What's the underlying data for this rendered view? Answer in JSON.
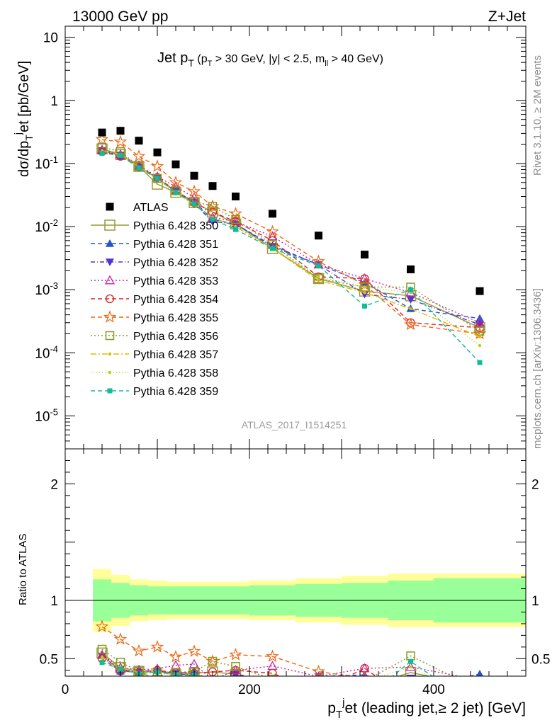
{
  "header": {
    "left": "13000 GeV pp",
    "right": "Z+Jet"
  },
  "side_labels": {
    "rivet": "Rivet 3.1.10, ≥ 2M events",
    "mcplots": "mcplots.cern.ch [arXiv:1306.3436]"
  },
  "analysis_label": "ATLAS_2017_I1514251",
  "title": {
    "main": "Jet p",
    "main_sub": "T",
    "cut_1": "(p",
    "cut_1_sub": "T",
    "cut_2": " > 30 GeV, |y| < 2.5, m",
    "cut_2_sub": "ll",
    "cut_3": " > 40 GeV)"
  },
  "axes": {
    "y_main": "dσ/dp",
    "y_main_sub": "T",
    "y_main_sup": "j",
    "y_main_rest": "et [pb/GeV]",
    "y_ratio": "Ratio to ATLAS",
    "x": "p",
    "x_sub": "T",
    "x_sup": "j",
    "x_rest": "et (leading jet,≥ 2 jet) [GeV]"
  },
  "chart_data": {
    "type": "scatter",
    "x_range": [
      0,
      500
    ],
    "y_main_range": [
      3e-06,
      15
    ],
    "y_main_scale": "log",
    "y_main_ticks": [
      "10",
      "1",
      "10^-1",
      "10^-2",
      "10^-3",
      "10^-4",
      "10^-5"
    ],
    "y_ratio_range": [
      0.35,
      2.3
    ],
    "y_ratio_ticks": [
      "2",
      "1",
      "0.5"
    ],
    "x_ticks": [
      "0",
      "200",
      "400"
    ],
    "legend_position": "middle-left",
    "x": [
      40,
      60,
      80,
      100,
      120,
      140,
      160,
      185,
      225,
      275,
      325,
      375,
      450
    ],
    "bins": [
      [
        30,
        50
      ],
      [
        50,
        70
      ],
      [
        70,
        90
      ],
      [
        90,
        110
      ],
      [
        110,
        130
      ],
      [
        130,
        150
      ],
      [
        150,
        170
      ],
      [
        170,
        200
      ],
      [
        200,
        250
      ],
      [
        250,
        300
      ],
      [
        300,
        350
      ],
      [
        350,
        400
      ],
      [
        400,
        500
      ]
    ],
    "atlas": {
      "name": "ATLAS",
      "values": [
        0.31,
        0.33,
        0.23,
        0.15,
        0.097,
        0.064,
        0.044,
        0.03,
        0.016,
        0.0072,
        0.0036,
        0.0021,
        0.00095
      ]
    },
    "ratio_band_inner": [
      0.18,
      0.15,
      0.13,
      0.12,
      0.12,
      0.12,
      0.12,
      0.12,
      0.13,
      0.14,
      0.15,
      0.17,
      0.19
    ],
    "ratio_band_outer": [
      0.27,
      0.22,
      0.18,
      0.17,
      0.16,
      0.16,
      0.16,
      0.16,
      0.17,
      0.19,
      0.21,
      0.23,
      0.23
    ],
    "series": [
      {
        "name": "Pythia 6.428 350",
        "color": "#9a9a3a",
        "dash": "",
        "marker": "open-square-big",
        "values": [
          0.17,
          0.14,
          0.09,
          0.047,
          0.035,
          0.024,
          0.017,
          0.011,
          0.0045,
          0.0015,
          0.00095,
          0.0008,
          0.00025
        ]
      },
      {
        "name": "Pythia 6.428 351",
        "color": "#2255cc",
        "dash": "6,4",
        "marker": "filled-triangle-up",
        "values": [
          0.165,
          0.13,
          0.09,
          0.06,
          0.036,
          0.025,
          0.013,
          0.011,
          0.005,
          0.0025,
          0.0013,
          0.0005,
          0.00035
        ]
      },
      {
        "name": "Pythia 6.428 352",
        "color": "#5533cc",
        "dash": "6,3,1,3",
        "marker": "filled-triangle-down",
        "values": [
          0.16,
          0.135,
          0.088,
          0.059,
          0.036,
          0.023,
          0.012,
          0.011,
          0.0048,
          0.0025,
          0.00085,
          0.0007,
          0.00028
        ]
      },
      {
        "name": "Pythia 6.428 353",
        "color": "#cc22aa",
        "dash": "2,3",
        "marker": "open-triangle-up",
        "values": [
          0.165,
          0.14,
          0.093,
          0.062,
          0.043,
          0.029,
          0.014,
          0.012,
          0.007,
          0.0025,
          0.0015,
          0.0009,
          0.0003
        ]
      },
      {
        "name": "Pythia 6.428 354",
        "color": "#dd2222",
        "dash": "6,4",
        "marker": "open-circle",
        "values": [
          0.155,
          0.13,
          0.088,
          0.06,
          0.037,
          0.024,
          0.017,
          0.012,
          0.006,
          0.0016,
          0.0015,
          0.0003,
          0.00025
        ]
      },
      {
        "name": "Pythia 6.428 355",
        "color": "#ee6611",
        "dash": "6,4",
        "marker": "open-star",
        "values": [
          0.24,
          0.22,
          0.13,
          0.09,
          0.05,
          0.036,
          0.021,
          0.016,
          0.0083,
          0.0028,
          0.0012,
          0.00028,
          0.0002
        ]
      },
      {
        "name": "Pythia 6.428 356",
        "color": "#889922",
        "dash": "2,3",
        "marker": "open-square",
        "values": [
          0.18,
          0.155,
          0.09,
          0.058,
          0.037,
          0.025,
          0.021,
          0.013,
          0.0052,
          0.0015,
          0.0011,
          0.0011,
          0.00022
        ]
      },
      {
        "name": "Pythia 6.428 357",
        "color": "#ddbb00",
        "dash": "8,3,2,3",
        "marker": "small-dot",
        "values": [
          0.16,
          0.14,
          0.088,
          0.058,
          0.035,
          0.022,
          0.014,
          0.01,
          0.0045,
          0.0014,
          0.0009,
          0.0005,
          0.00018
        ]
      },
      {
        "name": "Pythia 6.428 358",
        "color": "#bbcc22",
        "dash": "1,3",
        "marker": "small-dot",
        "values": [
          0.155,
          0.135,
          0.087,
          0.057,
          0.034,
          0.022,
          0.014,
          0.01,
          0.0047,
          0.0016,
          0.0011,
          0.0009,
          0.00013
        ]
      },
      {
        "name": "Pythia 6.428 359",
        "color": "#11bb99",
        "dash": "6,4",
        "marker": "filled-square-small",
        "values": [
          0.145,
          0.135,
          0.085,
          0.058,
          0.035,
          0.023,
          0.013,
          0.009,
          0.0045,
          0.0024,
          0.00055,
          0.001,
          7e-05
        ]
      }
    ],
    "colors": {
      "band_inner": "#99ff99",
      "band_outer": "#ffff99"
    }
  }
}
